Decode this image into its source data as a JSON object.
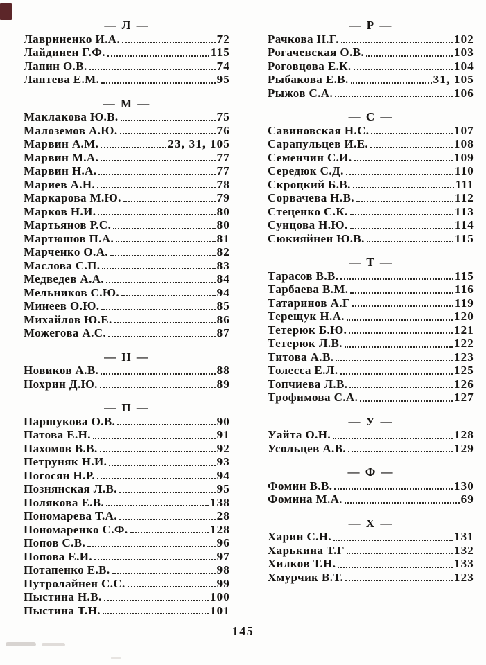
{
  "page": {
    "number": "145"
  },
  "columns": [
    {
      "sections": [
        {
          "letter": "L",
          "header": "— Л —",
          "entries": [
            {
              "name": "Лавриненко И.А.",
              "pages": "72"
            },
            {
              "name": "Лайдинен Г.Ф.",
              "pages": "115"
            },
            {
              "name": "Лапин О.В.",
              "pages": "74"
            },
            {
              "name": "Лаптева Е.М.",
              "pages": "95"
            }
          ]
        },
        {
          "letter": "M",
          "header": "— М —",
          "entries": [
            {
              "name": "Маклакова Ю.В.",
              "pages": "75"
            },
            {
              "name": "Малоземов А.Ю.",
              "pages": "76"
            },
            {
              "name": "Марвин А.М.",
              "pages": "23, 31, 105"
            },
            {
              "name": "Марвин М.А.",
              "pages": "77"
            },
            {
              "name": "Марвин Н.А.",
              "pages": "77"
            },
            {
              "name": "Мариев А.Н.",
              "pages": "78"
            },
            {
              "name": "Маркарова М.Ю.",
              "pages": "79"
            },
            {
              "name": "Марков Н.И.",
              "pages": "80"
            },
            {
              "name": "Мартьянов Р.С.",
              "pages": "80"
            },
            {
              "name": "Мартюшов П.А.",
              "pages": "81"
            },
            {
              "name": "Марченко О.А.",
              "pages": "82"
            },
            {
              "name": "Маслова С.П.",
              "pages": "83"
            },
            {
              "name": "Медведев А.А.",
              "pages": "84"
            },
            {
              "name": "Мельников С.Ю.",
              "pages": "94"
            },
            {
              "name": "Минеев О.Ю.",
              "pages": "85"
            },
            {
              "name": "Михайлов Ю.Е.",
              "pages": "86"
            },
            {
              "name": "Можегова А.С.",
              "pages": "87"
            }
          ]
        },
        {
          "letter": "N",
          "header": "— Н —",
          "entries": [
            {
              "name": "Новиков А.В.",
              "pages": "88"
            },
            {
              "name": "Нохрин Д.Ю.",
              "pages": "89"
            }
          ]
        },
        {
          "letter": "P",
          "header": "— П —",
          "entries": [
            {
              "name": "Паршукова О.В.",
              "pages": "90"
            },
            {
              "name": "Патова Е.Н.",
              "pages": "91"
            },
            {
              "name": "Пахомов В.В.",
              "pages": "92"
            },
            {
              "name": "Петруняк Н.И.",
              "pages": "93"
            },
            {
              "name": "Погосян Н.Р.",
              "pages": "94"
            },
            {
              "name": "Познянская Л.В.",
              "pages": "95"
            },
            {
              "name": "Полякова Е.В.",
              "pages": "138"
            },
            {
              "name": "Пономарева Т.А.",
              "pages": "28"
            },
            {
              "name": "Пономаренко С.Ф.",
              "pages": "128"
            },
            {
              "name": "Попов С.В.",
              "pages": "96"
            },
            {
              "name": "Попова Е.И.",
              "pages": "97"
            },
            {
              "name": "Потапенко Е.В.",
              "pages": "98"
            },
            {
              "name": "Путролайнен С.С.",
              "pages": "99"
            },
            {
              "name": "Пыстина Н.В.",
              "pages": "100"
            },
            {
              "name": "Пыстина Т.Н.",
              "pages": "101"
            }
          ]
        }
      ]
    },
    {
      "sections": [
        {
          "letter": "R",
          "header": "— Р —",
          "entries": [
            {
              "name": "Рачкова Н.Г.",
              "pages": "102"
            },
            {
              "name": "Рогачевская О.В.",
              "pages": "103"
            },
            {
              "name": "Роговцова Е.К.",
              "pages": "104"
            },
            {
              "name": "Рыбакова Е.В.",
              "pages": "31, 105"
            },
            {
              "name": "Рыжов С.А.",
              "pages": "106"
            }
          ]
        },
        {
          "letter": "S",
          "header": "— С —",
          "entries": [
            {
              "name": "Савиновская Н.С.",
              "pages": "107"
            },
            {
              "name": "Сарапульцев И.Е.",
              "pages": "108"
            },
            {
              "name": "Семенчин С.И.",
              "pages": "109"
            },
            {
              "name": "Середюк С.Д.",
              "pages": "110"
            },
            {
              "name": "Скроцкий Б.В.",
              "pages": "111"
            },
            {
              "name": "Сорвачева Н.В.",
              "pages": "112"
            },
            {
              "name": "Стеценко С.К.",
              "pages": "113"
            },
            {
              "name": "Сунцова Н.Ю.",
              "pages": "114"
            },
            {
              "name": "Сюкияйнен Ю.В.",
              "pages": "115"
            }
          ]
        },
        {
          "letter": "T",
          "header": "— Т —",
          "entries": [
            {
              "name": "Тарасов В.В.",
              "pages": "115"
            },
            {
              "name": "Тарбаева В.М.",
              "pages": "116"
            },
            {
              "name": "Татаринов А.Г",
              "pages": "119"
            },
            {
              "name": "Терещук Н.А.",
              "pages": "120"
            },
            {
              "name": "Тетерюк Б.Ю.",
              "pages": "121"
            },
            {
              "name": "Тетерюк Л.В.",
              "pages": "122"
            },
            {
              "name": "Титова А.В.",
              "pages": "123"
            },
            {
              "name": "Толесса Е.Л.",
              "pages": "125"
            },
            {
              "name": "Топчиева Л.В.",
              "pages": "126"
            },
            {
              "name": "Трофимова С.А.",
              "pages": "127"
            }
          ]
        },
        {
          "letter": "U",
          "header": "— У —",
          "entries": [
            {
              "name": "Уайта О.Н.",
              "pages": "128"
            },
            {
              "name": "Усольцев А.В.",
              "pages": "129"
            }
          ]
        },
        {
          "letter": "F",
          "header": "— Ф —",
          "entries": [
            {
              "name": "Фомин В.В.",
              "pages": "130"
            },
            {
              "name": "Фомина М.А.",
              "pages": "69"
            }
          ]
        },
        {
          "letter": "H",
          "header": "— Х —",
          "entries": [
            {
              "name": "Харин С.Н.",
              "pages": "131"
            },
            {
              "name": "Харькина Т.Г",
              "pages": "132"
            },
            {
              "name": "Хилков Т.Н.",
              "pages": "133"
            },
            {
              "name": "Хмурчик В.Т.",
              "pages": "123"
            }
          ]
        }
      ]
    }
  ]
}
